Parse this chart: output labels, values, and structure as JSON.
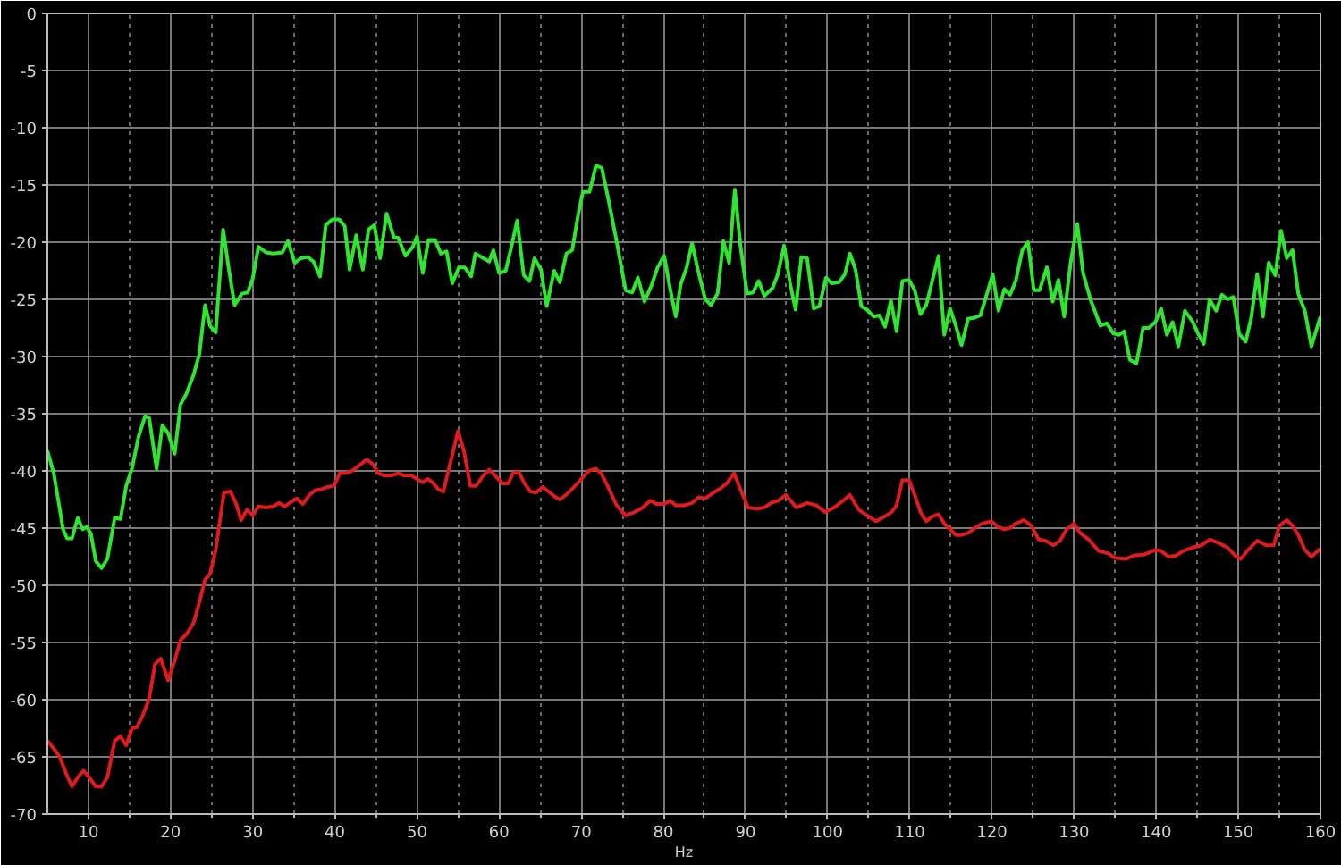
{
  "chart_data": {
    "type": "line",
    "xlabel": "Hz",
    "xlim": [
      5,
      160
    ],
    "ylim": [
      -70,
      0
    ],
    "xticks": [
      10,
      {
        "value": 15,
        "label": null
      },
      20,
      {
        "value": 25,
        "label": null
      },
      30,
      {
        "value": 35,
        "label": null
      },
      40,
      {
        "value": 45,
        "label": null
      },
      50,
      {
        "value": 55,
        "label": null
      },
      60,
      {
        "value": 65,
        "label": null
      },
      70,
      {
        "value": 75,
        "label": null
      },
      80,
      {
        "value": 85,
        "label": null
      },
      90,
      {
        "value": 95,
        "label": null
      },
      100,
      {
        "value": 105,
        "label": null
      },
      110,
      {
        "value": 115,
        "label": null
      },
      120,
      {
        "value": 125,
        "label": null
      },
      130,
      {
        "value": 135,
        "label": null
      },
      140,
      {
        "value": 145,
        "label": null
      },
      150,
      {
        "value": 155,
        "label": null
      },
      160
    ],
    "yticks": [
      0,
      -5,
      -10,
      -15,
      -20,
      -25,
      -30,
      -35,
      -40,
      -45,
      -50,
      -55,
      -60,
      -65,
      -70
    ],
    "grid": true,
    "series": [
      {
        "color": "#2ee62e",
        "x": [
          5.0,
          5.8,
          6.5,
          6.9,
          7.4,
          8.0,
          8.7,
          9.3,
          9.8,
          10.3,
          10.9,
          11.6,
          12.3,
          13.2,
          13.9,
          14.6,
          15.3,
          16.1,
          16.9,
          17.4,
          18.3,
          19.0,
          19.7,
          20.5,
          21.2,
          21.9,
          22.8,
          23.5,
          24.2,
          24.8,
          25.5,
          26.4,
          27.1,
          27.8,
          28.7,
          29.4,
          30.0,
          30.7,
          31.6,
          32.5,
          33.6,
          34.3,
          35.1,
          35.9,
          36.7,
          37.4,
          38.2,
          38.9,
          39.7,
          40.5,
          41.2,
          41.8,
          42.6,
          43.4,
          44.1,
          44.8,
          45.5,
          46.3,
          47.2,
          47.7,
          48.6,
          49.5,
          50.0,
          50.7,
          51.4,
          52.2,
          52.9,
          53.6,
          54.3,
          55.1,
          55.8,
          56.6,
          57.1,
          58.1,
          58.8,
          59.3,
          60.0,
          60.8,
          61.5,
          62.2,
          63.0,
          63.7,
          64.3,
          65.1,
          65.8,
          66.7,
          67.4,
          68.2,
          68.9,
          69.6,
          70.2,
          71.0,
          71.8,
          72.5,
          73.4,
          74.3,
          75.4,
          76.2,
          76.9,
          77.7,
          78.6,
          79.3,
          80.1,
          80.8,
          81.5,
          82.1,
          82.8,
          83.5,
          84.2,
          85.1,
          85.8,
          86.6,
          87.3,
          88.0,
          88.7,
          89.4,
          90.2,
          90.9,
          91.6,
          92.3,
          93.3,
          93.9,
          94.7,
          95.4,
          96.1,
          96.8,
          97.5,
          98.3,
          99.0,
          99.8,
          100.5,
          101.4,
          102.1,
          102.7,
          103.4,
          104.1,
          104.8,
          105.6,
          106.3,
          107.0,
          107.7,
          108.4,
          109.1,
          109.9,
          110.6,
          111.3,
          112.0,
          112.7,
          113.5,
          114.2,
          114.9,
          115.6,
          116.3,
          117.1,
          117.9,
          118.6,
          119.4,
          120.1,
          120.8,
          121.5,
          122.2,
          122.9,
          123.7,
          124.4,
          125.1,
          125.8,
          126.7,
          127.4,
          128.1,
          128.8,
          129.6,
          130.4,
          131.1,
          132.0,
          133.2,
          134.0,
          134.8,
          135.5,
          136.1,
          136.8,
          137.6,
          138.4,
          139.1,
          139.9,
          140.6,
          141.3,
          142.0,
          142.7,
          143.5,
          144.4,
          145.1,
          145.8,
          146.5,
          147.3,
          148.0,
          148.7,
          149.4,
          150.1,
          150.9,
          151.6,
          152.3,
          153.0,
          153.7,
          154.5,
          155.2,
          155.9,
          156.6,
          157.3,
          158.1,
          158.9,
          160.0
        ],
        "values": [
          -38.2,
          -40.3,
          -43.3,
          -45.1,
          -45.9,
          -45.9,
          -44.1,
          -45.1,
          -44.9,
          -45.5,
          -47.9,
          -48.5,
          -47.7,
          -44.1,
          -44.2,
          -41.3,
          -39.8,
          -37.0,
          -35.2,
          -35.4,
          -39.8,
          -36.0,
          -36.7,
          -38.5,
          -34.2,
          -33.3,
          -31.6,
          -29.8,
          -25.5,
          -27.3,
          -27.9,
          -18.9,
          -22.4,
          -25.5,
          -24.5,
          -24.4,
          -23.2,
          -20.4,
          -20.9,
          -21.0,
          -20.9,
          -19.9,
          -21.8,
          -21.4,
          -21.3,
          -21.7,
          -23.0,
          -18.5,
          -18.0,
          -18.0,
          -18.6,
          -22.4,
          -19.4,
          -22.4,
          -18.9,
          -18.5,
          -21.4,
          -17.5,
          -19.6,
          -19.6,
          -21.2,
          -20.4,
          -19.5,
          -22.7,
          -19.8,
          -19.8,
          -21.0,
          -20.8,
          -23.6,
          -22.2,
          -22.2,
          -23.0,
          -21.0,
          -21.4,
          -21.7,
          -20.7,
          -22.7,
          -22.5,
          -20.4,
          -18.1,
          -22.9,
          -23.4,
          -21.4,
          -22.4,
          -25.6,
          -22.5,
          -23.5,
          -21.0,
          -20.7,
          -17.7,
          -15.6,
          -15.6,
          -13.3,
          -13.5,
          -16.6,
          -19.9,
          -24.2,
          -24.4,
          -23.1,
          -25.2,
          -23.7,
          -22.2,
          -21.2,
          -24.0,
          -26.5,
          -23.7,
          -22.3,
          -20.1,
          -22.4,
          -25.0,
          -25.5,
          -24.5,
          -19.9,
          -21.8,
          -15.4,
          -20.4,
          -24.5,
          -24.4,
          -23.4,
          -24.7,
          -24.0,
          -22.9,
          -20.3,
          -23.5,
          -25.9,
          -21.3,
          -21.4,
          -25.8,
          -25.6,
          -23.1,
          -23.6,
          -23.5,
          -22.8,
          -21.0,
          -22.4,
          -25.6,
          -25.9,
          -26.5,
          -26.4,
          -27.4,
          -25.1,
          -27.8,
          -23.4,
          -23.3,
          -24.2,
          -26.3,
          -25.5,
          -23.5,
          -21.2,
          -28.1,
          -25.8,
          -27.3,
          -29.0,
          -26.7,
          -26.6,
          -26.4,
          -24.5,
          -22.8,
          -26.0,
          -24.1,
          -24.6,
          -23.4,
          -20.7,
          -20.0,
          -24.2,
          -24.2,
          -22.2,
          -25.2,
          -23.3,
          -26.5,
          -21.7,
          -18.4,
          -22.7,
          -25.0,
          -27.3,
          -27.1,
          -28.0,
          -28.1,
          -27.8,
          -30.3,
          -30.6,
          -27.5,
          -27.5,
          -27.0,
          -25.8,
          -28.1,
          -27.0,
          -29.1,
          -26.0,
          -26.9,
          -28.0,
          -28.9,
          -25.0,
          -26.0,
          -24.6,
          -25.0,
          -24.8,
          -28.0,
          -28.7,
          -26.5,
          -22.8,
          -26.5,
          -21.8,
          -22.9,
          -19.0,
          -21.4,
          -20.7,
          -24.5,
          -26.0,
          -29.1,
          -26.5
        ]
      },
      {
        "color": "#e01b1e",
        "x": [
          5.0,
          5.8,
          6.5,
          7.3,
          8.0,
          8.7,
          9.4,
          10.1,
          10.9,
          11.6,
          12.3,
          13.2,
          13.9,
          14.6,
          15.3,
          15.9,
          16.6,
          17.4,
          18.1,
          18.8,
          19.7,
          20.5,
          21.2,
          21.9,
          22.8,
          23.5,
          24.2,
          24.8,
          25.5,
          26.0,
          26.5,
          27.3,
          28.0,
          28.6,
          29.3,
          30.0,
          30.7,
          31.6,
          32.5,
          33.2,
          33.9,
          34.7,
          35.4,
          36.1,
          36.9,
          37.6,
          38.4,
          39.1,
          39.9,
          40.6,
          41.3,
          42.1,
          43.0,
          43.9,
          44.6,
          45.3,
          46.0,
          46.9,
          47.7,
          48.4,
          49.3,
          50.0,
          50.7,
          51.3,
          51.9,
          52.6,
          53.2,
          54.0,
          55.0,
          55.7,
          56.5,
          57.2,
          58.1,
          58.8,
          59.5,
          60.4,
          61.1,
          61.7,
          62.4,
          63.1,
          63.8,
          64.5,
          65.3,
          66.0,
          66.7,
          67.4,
          68.3,
          69.0,
          69.9,
          70.9,
          71.8,
          72.5,
          73.4,
          74.3,
          75.4,
          76.5,
          77.5,
          78.4,
          79.2,
          80.1,
          80.8,
          81.5,
          82.6,
          83.5,
          84.3,
          85.1,
          86.1,
          86.8,
          87.7,
          88.6,
          89.5,
          90.3,
          91.3,
          92.3,
          93.1,
          94.0,
          94.9,
          96.2,
          97.5,
          98.6,
          99.7,
          100.8,
          101.9,
          102.7,
          103.8,
          104.8,
          105.9,
          106.9,
          107.8,
          108.4,
          109.1,
          109.9,
          110.6,
          111.3,
          112.0,
          112.7,
          113.5,
          114.2,
          114.9,
          115.6,
          116.3,
          117.2,
          118.1,
          118.8,
          119.9,
          120.6,
          121.4,
          122.2,
          122.9,
          123.9,
          124.8,
          125.7,
          126.5,
          127.5,
          128.3,
          129.1,
          130.0,
          130.7,
          131.8,
          133.0,
          134.1,
          135.0,
          136.3,
          137.3,
          138.6,
          139.9,
          140.6,
          141.5,
          142.4,
          143.3,
          144.4,
          145.5,
          146.5,
          147.6,
          148.7,
          149.6,
          150.3,
          151.2,
          152.3,
          153.4,
          154.3,
          155.0,
          155.9,
          156.6,
          157.3,
          158.1,
          158.9,
          160.0
        ],
        "values": [
          -63.6,
          -64.3,
          -65.0,
          -66.5,
          -67.6,
          -66.8,
          -66.2,
          -66.8,
          -67.6,
          -67.6,
          -66.8,
          -63.6,
          -63.2,
          -64.0,
          -62.5,
          -62.4,
          -61.4,
          -59.9,
          -56.9,
          -56.4,
          -58.3,
          -56.6,
          -54.8,
          -54.3,
          -53.3,
          -51.5,
          -49.5,
          -49.0,
          -46.9,
          -44.4,
          -41.9,
          -41.8,
          -42.9,
          -44.3,
          -43.4,
          -43.9,
          -43.1,
          -43.2,
          -43.1,
          -42.8,
          -43.1,
          -42.7,
          -42.4,
          -42.9,
          -42.1,
          -41.7,
          -41.6,
          -41.4,
          -41.3,
          -40.2,
          -40.2,
          -40.0,
          -39.5,
          -39.0,
          -39.4,
          -40.2,
          -40.4,
          -40.4,
          -40.2,
          -40.4,
          -40.4,
          -40.7,
          -41.0,
          -40.7,
          -41.0,
          -41.6,
          -41.8,
          -39.5,
          -36.5,
          -38.2,
          -41.3,
          -41.3,
          -40.4,
          -39.9,
          -40.4,
          -41.1,
          -41.1,
          -40.2,
          -40.1,
          -41.1,
          -41.8,
          -41.9,
          -41.4,
          -41.8,
          -42.2,
          -42.5,
          -42.0,
          -41.5,
          -40.8,
          -40.0,
          -39.8,
          -40.3,
          -41.6,
          -43.0,
          -43.9,
          -43.6,
          -43.2,
          -42.6,
          -42.9,
          -42.9,
          -42.6,
          -43.0,
          -43.0,
          -42.8,
          -42.3,
          -42.4,
          -41.9,
          -41.6,
          -41.1,
          -40.2,
          -41.8,
          -43.2,
          -43.3,
          -43.2,
          -42.8,
          -42.6,
          -42.1,
          -43.2,
          -42.8,
          -43.0,
          -43.6,
          -43.2,
          -42.6,
          -42.1,
          -43.4,
          -43.9,
          -44.4,
          -44.0,
          -43.6,
          -43.0,
          -40.8,
          -40.8,
          -42.1,
          -43.6,
          -44.4,
          -44.0,
          -43.8,
          -44.6,
          -45.1,
          -45.6,
          -45.6,
          -45.4,
          -44.9,
          -44.6,
          -44.4,
          -44.8,
          -45.1,
          -45.0,
          -44.6,
          -44.3,
          -44.8,
          -46.0,
          -46.1,
          -46.5,
          -46.1,
          -45.1,
          -44.6,
          -45.4,
          -46.0,
          -47.0,
          -47.2,
          -47.6,
          -47.7,
          -47.4,
          -47.3,
          -46.9,
          -47.0,
          -47.5,
          -47.4,
          -47.0,
          -46.7,
          -46.5,
          -46.0,
          -46.3,
          -46.7,
          -47.4,
          -47.7,
          -46.9,
          -46.1,
          -46.5,
          -46.5,
          -44.8,
          -44.3,
          -44.8,
          -45.6,
          -46.9,
          -47.5,
          -46.8
        ]
      }
    ]
  }
}
